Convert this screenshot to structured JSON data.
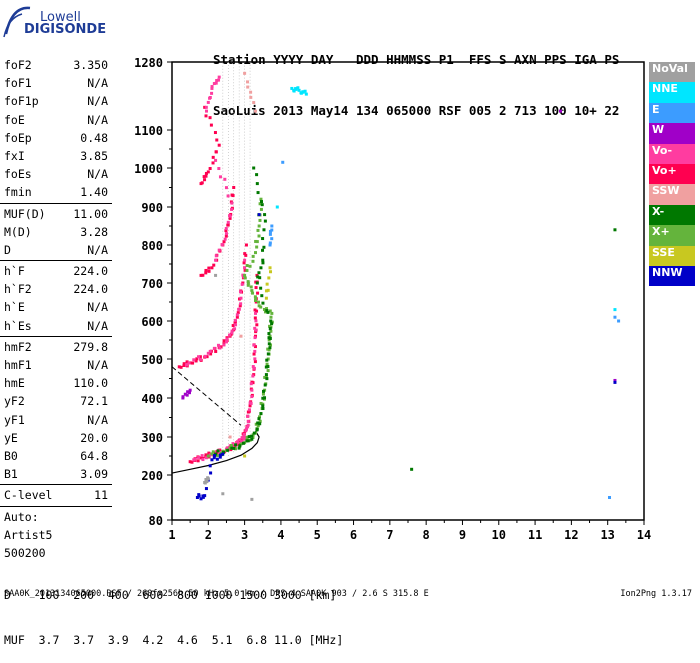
{
  "logo": {
    "line1": "Lowell",
    "line2": "DIGISONDE"
  },
  "header": {
    "line1": "Station YYYY DAY   DDD HHMMSS P1  FFS S AXN PPS IGA PS",
    "line2": "SaoLuis 2013 May14 134 065000 RSF 005 2 713 100 10+ 22"
  },
  "params": {
    "group1": [
      {
        "label": "foF2",
        "value": "3.350"
      },
      {
        "label": "foF1",
        "value": "N/A"
      },
      {
        "label": "foF1p",
        "value": "N/A"
      },
      {
        "label": "foE",
        "value": "N/A"
      },
      {
        "label": "foEp",
        "value": "0.48"
      },
      {
        "label": "fxI",
        "value": "3.85"
      },
      {
        "label": "foEs",
        "value": "N/A"
      },
      {
        "label": "fmin",
        "value": "1.40"
      }
    ],
    "group2": [
      {
        "label": "MUF(D)",
        "value": "11.00"
      },
      {
        "label": "M(D)",
        "value": "3.28"
      },
      {
        "label": "D",
        "value": "N/A"
      }
    ],
    "group3": [
      {
        "label": "h`F",
        "value": "224.0"
      },
      {
        "label": "h`F2",
        "value": "224.0"
      },
      {
        "label": "h`E",
        "value": "N/A"
      },
      {
        "label": "h`Es",
        "value": "N/A"
      }
    ],
    "group4": [
      {
        "label": "hmF2",
        "value": "279.8"
      },
      {
        "label": "hmF1",
        "value": "N/A"
      },
      {
        "label": "hmE",
        "value": "110.0"
      },
      {
        "label": "yF2",
        "value": "72.1"
      },
      {
        "label": "yF1",
        "value": "N/A"
      },
      {
        "label": "yE",
        "value": "20.0"
      },
      {
        "label": "B0",
        "value": "64.8"
      },
      {
        "label": "B1",
        "value": "3.09"
      }
    ],
    "clevel": {
      "label": "C-level",
      "value": "11"
    },
    "auto_lines": [
      "Auto:",
      "Artist5",
      "500200"
    ]
  },
  "legend": [
    {
      "label": "NoVal",
      "color": "#a0a0a0"
    },
    {
      "label": "NNE",
      "color": "#00e6ff"
    },
    {
      "label": "E",
      "color": "#3c9cff"
    },
    {
      "label": "W",
      "color": "#a000c8"
    },
    {
      "label": "Vo-",
      "color": "#ff3ca0"
    },
    {
      "label": "Vo+",
      "color": "#ff0050"
    },
    {
      "label": "SSW",
      "color": "#f0a0a0"
    },
    {
      "label": "X-",
      "color": "#007800"
    },
    {
      "label": "X+",
      "color": "#64b43c"
    },
    {
      "label": "SSE",
      "color": "#c8c820"
    },
    {
      "label": "NNW",
      "color": "#0000c8"
    }
  ],
  "prop_table": {
    "line1": "D    100  200  400  600  800 1000 1500 3000 [km]",
    "line2": "MUF  3.7  3.7  3.9  4.2  4.6  5.1  6.8 11.0 [MHz]"
  },
  "footer": {
    "text": "SAA0K_2013134065000.RSF / 260fx256h 50 kHz 5.0 km / DPS-4 SAA0K 903 / 2.6 S 315.8 E",
    "version": "Ion2Png 1.3.17"
  },
  "chart_data": {
    "type": "scatter",
    "title": "",
    "xlabel": "",
    "ylabel": "",
    "xlim": [
      1,
      14
    ],
    "ylim": [
      80,
      1280
    ],
    "x_ticks": [
      1,
      2,
      3,
      4,
      5,
      6,
      7,
      8,
      9,
      10,
      11,
      12,
      13,
      14
    ],
    "y_ticks": [
      80,
      200,
      300,
      400,
      500,
      600,
      700,
      800,
      900,
      1000,
      1100,
      1280
    ],
    "series": [
      {
        "name": "Vo+",
        "color": "#ff0050",
        "points": [
          [
            1.5,
            235
          ],
          [
            1.8,
            245
          ],
          [
            2.1,
            255
          ],
          [
            2.4,
            262
          ],
          [
            2.7,
            275
          ],
          [
            2.9,
            290
          ],
          [
            3.05,
            320
          ],
          [
            3.15,
            380
          ],
          [
            3.25,
            460
          ],
          [
            3.3,
            560
          ],
          [
            3.32,
            650
          ],
          [
            3.34,
            720
          ],
          [
            1.2,
            480
          ],
          [
            1.5,
            490
          ],
          [
            1.9,
            505
          ],
          [
            2.3,
            530
          ],
          [
            2.6,
            560
          ],
          [
            2.8,
            610
          ],
          [
            2.95,
            700
          ],
          [
            3.05,
            800
          ],
          [
            1.8,
            720
          ],
          [
            2.1,
            740
          ],
          [
            2.4,
            800
          ],
          [
            2.6,
            870
          ],
          [
            2.7,
            950
          ],
          [
            1.8,
            960
          ],
          [
            2.0,
            990
          ],
          [
            2.3,
            1060
          ],
          [
            1.9,
            1160
          ]
        ]
      },
      {
        "name": "Vo-",
        "color": "#ff3ca0",
        "points": [
          [
            1.6,
            240
          ],
          [
            2.0,
            250
          ],
          [
            2.5,
            268
          ],
          [
            2.8,
            285
          ],
          [
            3.0,
            300
          ],
          [
            3.1,
            340
          ],
          [
            3.2,
            420
          ],
          [
            3.28,
            520
          ],
          [
            3.3,
            620
          ],
          [
            1.4,
            485
          ],
          [
            2.0,
            515
          ],
          [
            2.5,
            545
          ],
          [
            2.75,
            590
          ],
          [
            2.9,
            660
          ],
          [
            3.0,
            760
          ],
          [
            2.2,
            760
          ],
          [
            2.5,
            830
          ],
          [
            2.65,
            910
          ],
          [
            2.2,
            1020
          ],
          [
            1.95,
            1150
          ],
          [
            2.1,
            1210
          ],
          [
            2.3,
            1240
          ]
        ]
      },
      {
        "name": "X+",
        "color": "#64b43c",
        "points": [
          [
            2.0,
            250
          ],
          [
            2.5,
            265
          ],
          [
            3.0,
            285
          ],
          [
            3.3,
            310
          ],
          [
            3.45,
            360
          ],
          [
            3.55,
            420
          ],
          [
            3.65,
            500
          ],
          [
            3.7,
            560
          ],
          [
            3.75,
            620
          ],
          [
            3.4,
            640
          ],
          [
            3.2,
            680
          ],
          [
            3.0,
            720
          ],
          [
            3.3,
            780
          ],
          [
            3.4,
            850
          ],
          [
            3.45,
            920
          ]
        ]
      },
      {
        "name": "X-",
        "color": "#007800",
        "points": [
          [
            2.2,
            255
          ],
          [
            2.7,
            270
          ],
          [
            3.1,
            290
          ],
          [
            3.35,
            320
          ],
          [
            3.5,
            380
          ],
          [
            3.6,
            460
          ],
          [
            3.68,
            540
          ],
          [
            3.72,
            600
          ],
          [
            3.35,
            700
          ],
          [
            3.5,
            760
          ],
          [
            3.55,
            880
          ],
          [
            3.25,
            1000
          ],
          [
            7.6,
            215
          ],
          [
            13.2,
            840
          ]
        ]
      },
      {
        "name": "NNE",
        "color": "#00e6ff",
        "points": [
          [
            4.3,
            1210
          ],
          [
            4.5,
            1205
          ],
          [
            4.7,
            1195
          ],
          [
            3.9,
            900
          ],
          [
            13.2,
            630
          ]
        ]
      },
      {
        "name": "E",
        "color": "#3c9cff",
        "points": [
          [
            3.7,
            800
          ],
          [
            3.75,
            850
          ],
          [
            4.05,
            1015
          ],
          [
            13.2,
            610
          ],
          [
            13.05,
            140
          ],
          [
            13.3,
            600
          ]
        ]
      },
      {
        "name": "W",
        "color": "#a000c8",
        "points": [
          [
            11.7,
            1150
          ],
          [
            13.2,
            445
          ],
          [
            1.3,
            400
          ],
          [
            1.5,
            420
          ]
        ]
      },
      {
        "name": "NNW",
        "color": "#0000c8",
        "points": [
          [
            1.7,
            140
          ],
          [
            1.9,
            145
          ],
          [
            2.1,
            240
          ],
          [
            2.4,
            255
          ],
          [
            3.4,
            880
          ],
          [
            13.2,
            440
          ]
        ]
      },
      {
        "name": "SSE",
        "color": "#c8c820",
        "points": [
          [
            3.0,
            250
          ],
          [
            3.6,
            660
          ],
          [
            3.7,
            740
          ]
        ]
      },
      {
        "name": "SSW",
        "color": "#f0a0a0",
        "points": [
          [
            2.6,
            300
          ],
          [
            2.9,
            560
          ],
          [
            3.0,
            1250
          ],
          [
            3.3,
            1150
          ]
        ]
      },
      {
        "name": "NoVal",
        "color": "#a0a0a0",
        "points": [
          [
            1.9,
            180
          ],
          [
            2.0,
            190
          ],
          [
            2.2,
            720
          ],
          [
            3.2,
            135
          ],
          [
            2.4,
            150
          ]
        ]
      }
    ]
  }
}
